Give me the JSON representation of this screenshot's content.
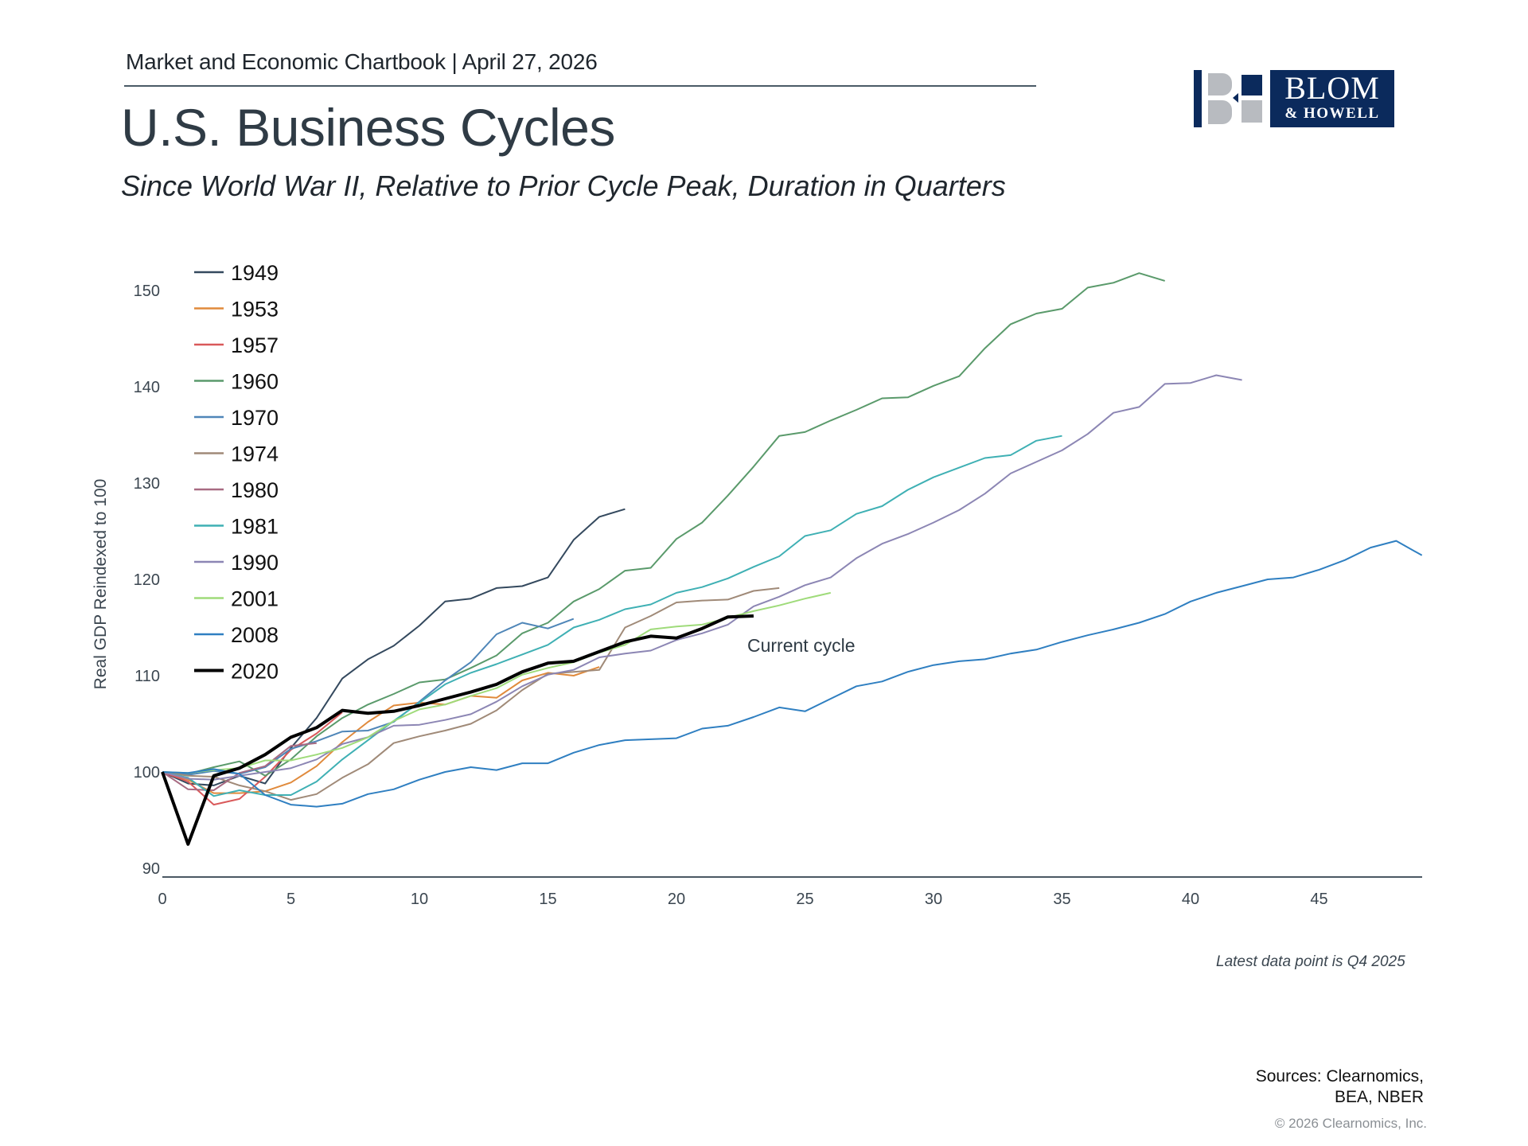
{
  "header": {
    "kicker": "Market and Economic Chartbook | April 27, 2026",
    "title": "U.S. Business Cycles",
    "subtitle": "Since World War II, Relative to Prior Cycle Peak, Duration in Quarters"
  },
  "logo": {
    "line1": "BLOM",
    "line2": "& HOWELL",
    "brand_color": "#0b2a5c",
    "accent_color": "#b8bbc0"
  },
  "footer": {
    "note": "Latest data point is Q4 2025",
    "sources_line1": "Sources: Clearnomics,",
    "sources_line2": "BEA, NBER",
    "copyright": "© 2026 Clearnomics, Inc."
  },
  "chart_data": {
    "type": "line",
    "title": "U.S. Business Cycles",
    "xlabel": "",
    "ylabel": "Real GDP Reindexed to 100",
    "xlim": [
      0,
      49
    ],
    "ylim": [
      90,
      152
    ],
    "x_ticks": [
      0,
      5,
      10,
      15,
      20,
      25,
      30,
      35,
      40,
      45
    ],
    "y_ticks": [
      90,
      100,
      110,
      120,
      130,
      140,
      150
    ],
    "grid": false,
    "legend_position": "top-left",
    "annotation": {
      "text": "Current cycle",
      "x": 22.5,
      "y": 113
    },
    "series": [
      {
        "name": "1949",
        "color": "#34495e",
        "width": 2,
        "values": [
          100,
          98.8,
          98.6,
          99.6,
          98.8,
          102.5,
          105.6,
          109.7,
          111.7,
          113.1,
          115.2,
          117.7,
          118.0,
          119.1,
          119.3,
          120.2,
          124.1,
          126.5,
          127.3
        ]
      },
      {
        "name": "1953",
        "color": "#e08a3c",
        "width": 2,
        "values": [
          100,
          99.2,
          97.8,
          97.8,
          98.0,
          98.9,
          100.6,
          103.1,
          105.2,
          106.9,
          107.2,
          107.0,
          107.9,
          107.7,
          109.5,
          110.3,
          110.0,
          110.9
        ]
      },
      {
        "name": "1957",
        "color": "#d9595a",
        "width": 2,
        "values": [
          100,
          99.0,
          96.6,
          97.2,
          99.5,
          102.3,
          104.0,
          106.2
        ]
      },
      {
        "name": "1960",
        "color": "#5a9a6b",
        "width": 2,
        "values": [
          100,
          99.8,
          100.5,
          101.1,
          99.6,
          101.3,
          103.7,
          105.6,
          107.0,
          108.1,
          109.3,
          109.6,
          110.8,
          112.1,
          114.4,
          115.5,
          117.7,
          119.0,
          120.9,
          121.2,
          124.2,
          125.9,
          128.7,
          131.7,
          134.9,
          135.3,
          136.5,
          137.6,
          138.8,
          138.9,
          140.1,
          141.1,
          144.0,
          146.5,
          147.6,
          148.1,
          150.3,
          150.8,
          151.8,
          151.0
        ]
      },
      {
        "name": "1970",
        "color": "#4f86b8",
        "width": 2,
        "values": [
          100,
          99.7,
          100.1,
          99.8,
          100.5,
          102.4,
          103.2,
          104.2,
          104.3,
          105.2,
          107.3,
          109.5,
          111.4,
          114.3,
          115.5,
          114.9,
          115.9
        ]
      },
      {
        "name": "1974",
        "color": "#a08a78",
        "width": 2,
        "values": [
          100,
          99.6,
          99.5,
          98.6,
          98.0,
          97.1,
          97.7,
          99.4,
          100.8,
          103.0,
          103.7,
          104.3,
          105.0,
          106.4,
          108.5,
          110.2,
          110.4,
          110.6,
          115.0,
          116.2,
          117.6,
          117.8,
          117.9,
          118.8,
          119.1
        ]
      },
      {
        "name": "1980",
        "color": "#a86b82",
        "width": 2,
        "values": [
          100,
          98.2,
          98.1,
          99.9,
          100.6,
          102.7,
          103.0
        ]
      },
      {
        "name": "1981",
        "color": "#3fb0b4",
        "width": 2,
        "values": [
          100,
          99.4,
          97.5,
          98.1,
          97.6,
          97.6,
          99.0,
          101.3,
          103.3,
          105.3,
          107.2,
          109.1,
          110.3,
          111.2,
          112.2,
          113.2,
          115.0,
          115.8,
          116.9,
          117.4,
          118.6,
          119.2,
          120.1,
          121.3,
          122.4,
          124.5,
          125.1,
          126.8,
          127.6,
          129.3,
          130.6,
          131.6,
          132.6,
          132.9,
          134.4,
          134.9
        ]
      },
      {
        "name": "1990",
        "color": "#8c86b4",
        "width": 2,
        "values": [
          100,
          99.3,
          99.2,
          99.6,
          100.0,
          100.4,
          101.3,
          102.9,
          103.6,
          104.8,
          104.9,
          105.4,
          106.0,
          107.3,
          108.9,
          110.1,
          110.6,
          111.9,
          112.3,
          112.6,
          113.7,
          114.4,
          115.3,
          117.2,
          118.2,
          119.4,
          120.2,
          122.2,
          123.7,
          124.7,
          125.9,
          127.2,
          128.9,
          131.0,
          132.2,
          133.4,
          135.1,
          137.3,
          137.9,
          140.3,
          140.4,
          141.2,
          140.7
        ]
      },
      {
        "name": "2001",
        "color": "#9fdb7a",
        "width": 2,
        "values": [
          100,
          99.9,
          100.2,
          100.4,
          101.2,
          101.2,
          101.8,
          102.5,
          103.6,
          105.3,
          106.5,
          107.0,
          107.9,
          108.7,
          110.1,
          110.8,
          111.4,
          112.4,
          113.2,
          114.8,
          115.1,
          115.3,
          116.0,
          116.7,
          117.3,
          118.0,
          118.6
        ]
      },
      {
        "name": "2008",
        "color": "#2f7fc1",
        "width": 2,
        "values": [
          100,
          99.9,
          100.3,
          99.8,
          97.6,
          96.6,
          96.4,
          96.7,
          97.7,
          98.2,
          99.2,
          100.0,
          100.5,
          100.2,
          100.9,
          100.9,
          102.0,
          102.8,
          103.3,
          103.4,
          103.5,
          104.5,
          104.8,
          105.7,
          106.7,
          106.3,
          107.6,
          108.9,
          109.4,
          110.4,
          111.1,
          111.5,
          111.7,
          112.3,
          112.7,
          113.5,
          114.2,
          114.8,
          115.5,
          116.4,
          117.7,
          118.6,
          119.3,
          120.0,
          120.2,
          121.0,
          122.0,
          123.3,
          124.0,
          122.5
        ]
      },
      {
        "name": "2020",
        "color": "#000000",
        "width": 4,
        "values": [
          100,
          92.5,
          99.6,
          100.4,
          101.8,
          103.6,
          104.6,
          106.4,
          106.1,
          106.3,
          106.9,
          107.6,
          108.3,
          109.1,
          110.4,
          111.3,
          111.5,
          112.5,
          113.5,
          114.1,
          113.9,
          114.9,
          116.1,
          116.2
        ]
      }
    ]
  }
}
